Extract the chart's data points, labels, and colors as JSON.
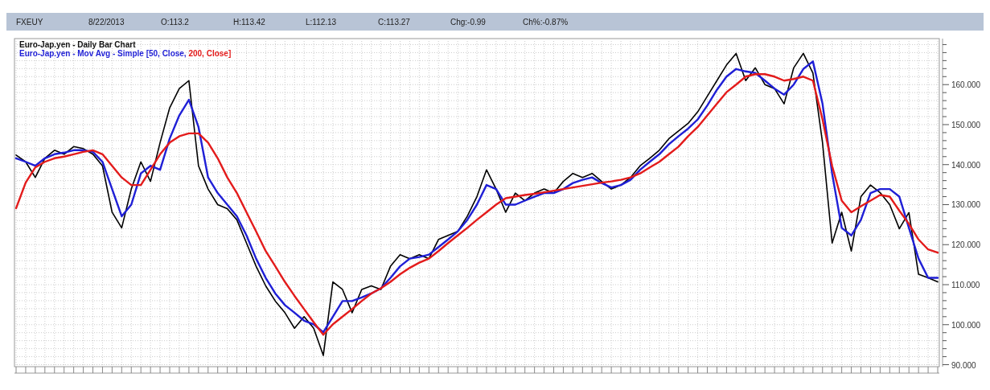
{
  "chart_data": {
    "type": "line",
    "title": "Euro-Jap.yen - Daily Bar Chart",
    "subtitle": "Euro-Jap.yen - Mov Avg - Simple",
    "annotations": [
      "FXEUY",
      "8/22/2013",
      "O:113.2",
      "H:113.42",
      "L:112.13",
      "C:113.27",
      "Chg:-0.99",
      "Ch%:-0.87%"
    ],
    "categories": [
      null,
      null,
      null,
      null,
      null,
      null,
      null,
      null,
      null,
      null,
      null,
      null,
      null,
      null,
      null,
      null,
      null,
      null,
      null,
      null,
      null,
      null,
      null,
      null,
      null,
      null,
      null,
      null,
      null,
      null,
      null,
      null,
      null,
      null,
      null,
      null,
      null,
      null,
      null,
      null,
      null,
      null,
      null,
      null,
      null,
      null,
      null,
      null,
      null,
      null,
      null,
      null,
      null,
      null,
      null,
      null,
      null,
      null,
      null,
      null,
      null,
      null,
      null,
      null,
      null,
      null,
      null,
      null,
      null,
      null,
      null,
      null,
      null,
      null,
      null,
      null,
      null,
      null,
      null,
      null,
      null,
      null,
      null,
      null,
      null,
      null,
      null,
      null,
      null,
      null,
      null,
      null,
      null,
      null,
      null,
      null,
      null
    ],
    "series": [
      {
        "color": "#000000",
        "values": [
          142.4,
          140.7,
          136.8,
          141.6,
          143.6,
          142.6,
          144.5,
          144,
          142.6,
          139.7,
          128.1,
          124.2,
          133.9,
          140.7,
          135.8,
          145.5,
          154.2,
          159,
          161,
          139.7,
          133.9,
          130,
          129,
          126.2,
          120.4,
          114.6,
          109.7,
          105.9,
          103,
          99.1,
          102,
          99.1,
          92.3,
          110.7,
          108.8,
          103,
          108.8,
          109.7,
          108.8,
          114.6,
          117.5,
          116.5,
          117.5,
          116.5,
          121.3,
          122.3,
          123.3,
          127.1,
          132,
          138.7,
          133.9,
          128.1,
          132.9,
          131,
          132.9,
          133.9,
          132.9,
          135.8,
          137.8,
          136.8,
          137.8,
          135.8,
          133.9,
          134.9,
          136.8,
          139.7,
          141.6,
          143.6,
          146.5,
          148.4,
          150.3,
          153.2,
          157.1,
          161,
          164.9,
          167.8,
          161,
          164.2,
          160,
          159,
          155.2,
          164.2,
          167.8,
          162.9,
          145.5,
          120.4,
          128.1,
          118.4,
          132,
          134.9,
          133,
          130,
          124,
          128,
          112.6,
          111.7,
          110.7
        ]
      },
      {
        "name": "[50, Close,",
        "color": "#1f1fd6",
        "values": [
          141.6,
          140.7,
          139.7,
          141.6,
          142.6,
          143,
          143.6,
          143.6,
          143.2,
          140.7,
          133.9,
          127.1,
          130,
          137.8,
          139.7,
          138.7,
          146.5,
          152.3,
          156.2,
          149.4,
          136.8,
          132.9,
          130,
          127.1,
          122.3,
          116.5,
          111.7,
          107.8,
          104.9,
          103,
          101,
          100.1,
          98.1,
          102,
          105.9,
          105.9,
          106.8,
          107.8,
          109.1,
          111.7,
          114.6,
          116.5,
          116.9,
          117.5,
          119.4,
          121.3,
          123.3,
          126.2,
          130,
          134.9,
          133.9,
          130,
          130,
          131,
          132,
          132.9,
          132.9,
          133.9,
          135.4,
          136.2,
          136.8,
          135.4,
          134.3,
          134.9,
          136.2,
          138.7,
          140.7,
          142.6,
          145.1,
          147.1,
          149,
          151.3,
          154.8,
          158.7,
          162,
          163.9,
          163.3,
          162.9,
          161,
          159,
          157.5,
          160,
          163.9,
          165.8,
          155.2,
          137.8,
          124.2,
          122.3,
          126.2,
          132.9,
          133.9,
          133.9,
          132,
          124.2,
          116.5,
          111.7,
          111.7
        ]
      },
      {
        "name": "200, Close]",
        "color": "#e31b1b",
        "values": [
          129.1,
          135.5,
          139.3,
          140.7,
          141.6,
          142,
          142.6,
          143.2,
          143.6,
          142.6,
          139.7,
          136.8,
          134.9,
          134.9,
          138.7,
          142.6,
          145.5,
          147.1,
          147.8,
          147.8,
          145.5,
          141.6,
          136.8,
          132.9,
          128.1,
          123.3,
          118.4,
          114.6,
          110.7,
          107.2,
          103.9,
          100.6,
          97.5,
          100.1,
          102,
          103.9,
          105.9,
          107.8,
          109.1,
          110.7,
          112.6,
          114.2,
          115.5,
          116.5,
          118.4,
          120.4,
          122.3,
          124.2,
          126.2,
          128.1,
          130,
          131.6,
          132,
          132.4,
          132.7,
          133.1,
          133.5,
          133.9,
          134.3,
          134.7,
          135.1,
          135.5,
          135.8,
          136.2,
          136.8,
          137.8,
          139.3,
          140.7,
          142.6,
          144.5,
          147.1,
          149.4,
          152.3,
          155.2,
          158.1,
          160,
          162,
          162.6,
          162.6,
          162,
          161,
          161.4,
          162,
          161,
          151.3,
          139.7,
          131,
          128.1,
          129.6,
          131,
          132.4,
          132,
          128.5,
          125.2,
          121.3,
          118.8,
          118
        ]
      }
    ],
    "ylim": [
      89.5,
      171.5
    ],
    "yticks": [
      {
        "value": 90,
        "label": "90.000"
      },
      {
        "value": 92,
        "label": null
      },
      {
        "value": 94,
        "label": null
      },
      {
        "value": 96,
        "label": null
      },
      {
        "value": 98,
        "label": null
      },
      {
        "value": 100,
        "label": "100.000"
      },
      {
        "value": 102,
        "label": null
      },
      {
        "value": 104,
        "label": null
      },
      {
        "value": 106,
        "label": null
      },
      {
        "value": 108,
        "label": null
      },
      {
        "value": 110,
        "label": "110.000"
      },
      {
        "value": 112,
        "label": null
      },
      {
        "value": 114,
        "label": null
      },
      {
        "value": 116,
        "label": null
      },
      {
        "value": 118,
        "label": null
      },
      {
        "value": 120,
        "label": "120.000"
      },
      {
        "value": 122,
        "label": null
      },
      {
        "value": 124,
        "label": null
      },
      {
        "value": 126,
        "label": null
      },
      {
        "value": 128,
        "label": null
      },
      {
        "value": 130,
        "label": "130.000"
      },
      {
        "value": 132,
        "label": null
      },
      {
        "value": 134,
        "label": null
      },
      {
        "value": 136,
        "label": null
      },
      {
        "value": 138,
        "label": null
      },
      {
        "value": 140,
        "label": "140.000"
      },
      {
        "value": 142,
        "label": null
      },
      {
        "value": 144,
        "label": null
      },
      {
        "value": 146,
        "label": null
      },
      {
        "value": 148,
        "label": null
      },
      {
        "value": 150,
        "label": "150.000"
      },
      {
        "value": 152,
        "label": null
      },
      {
        "value": 154,
        "label": null
      },
      {
        "value": 156,
        "label": null
      },
      {
        "value": 158,
        "label": null
      },
      {
        "value": 160,
        "label": "160.000"
      },
      {
        "value": 162,
        "label": null
      },
      {
        "value": 164,
        "label": null
      },
      {
        "value": 166,
        "label": null
      },
      {
        "value": 168,
        "label": null
      },
      {
        "value": 170,
        "label": null
      }
    ],
    "grid": true,
    "legend": "top left",
    "tick_labels": "y",
    "line_style": "solid",
    "marker": "none"
  }
}
